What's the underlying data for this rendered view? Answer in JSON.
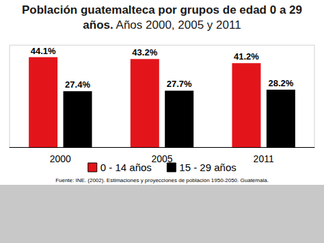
{
  "chart_data": {
    "type": "bar",
    "title": "Población guatemalteca por grupos de edad 0 a 29 años.",
    "subtitle": "Años 2000, 2005 y 2011",
    "categories": [
      "2000",
      "2005",
      "2011"
    ],
    "series": [
      {
        "name": "0 - 14 años",
        "color": "#e3151b",
        "values": [
          44.1,
          43.2,
          41.2
        ],
        "value_labels": [
          "44.1%",
          "43.2%",
          "41.2%"
        ]
      },
      {
        "name": "15 - 29 años",
        "color": "#000000",
        "values": [
          27.4,
          27.7,
          28.2
        ],
        "value_labels": [
          "27.4%",
          "27.7%",
          "28.2%"
        ]
      }
    ],
    "ylim": [
      0,
      50
    ],
    "data_labels": true,
    "legend": "bottom",
    "tick_labels": "x",
    "grid": false,
    "annotations": [
      "Fuente: INE. (2002). Estimaciones y proyecciones de población 1950-2050. Guatemala."
    ]
  }
}
